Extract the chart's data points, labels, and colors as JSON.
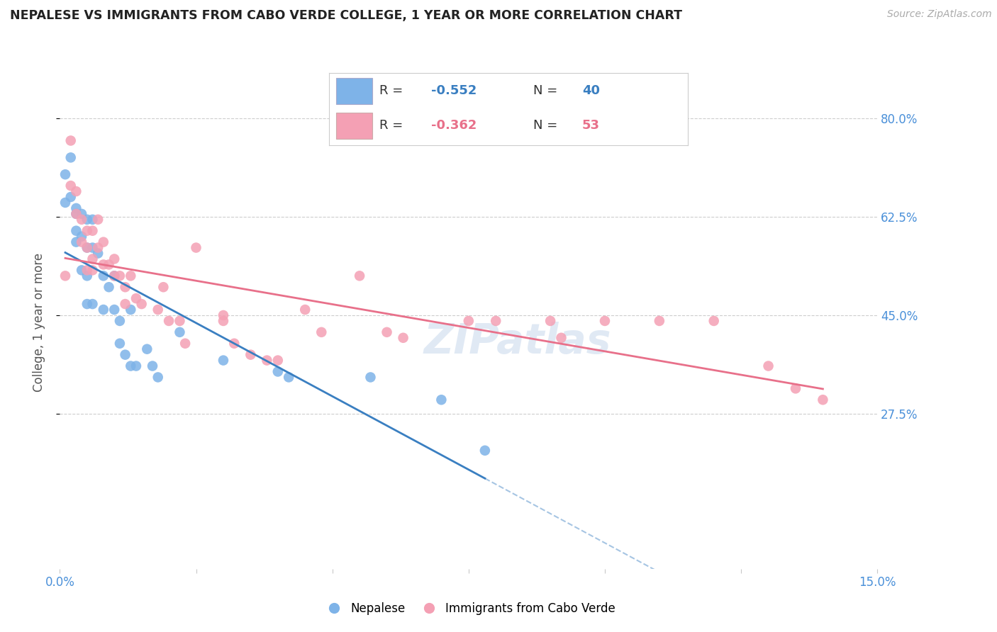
{
  "title": "NEPALESE VS IMMIGRANTS FROM CABO VERDE COLLEGE, 1 YEAR OR MORE CORRELATION CHART",
  "source": "Source: ZipAtlas.com",
  "ylabel": "College, 1 year or more",
  "xlim": [
    0.0,
    0.15
  ],
  "ylim": [
    0.0,
    0.875
  ],
  "nepalese_R": -0.552,
  "nepalese_N": 40,
  "caboverde_R": -0.362,
  "caboverde_N": 53,
  "nepalese_color": "#7EB3E8",
  "caboverde_color": "#F4A0B4",
  "nepalese_line_color": "#3A7FC1",
  "caboverde_line_color": "#E8708A",
  "yticks": [
    0.275,
    0.45,
    0.625,
    0.8
  ],
  "ytick_labels": [
    "27.5%",
    "45.0%",
    "62.5%",
    "80.0%"
  ],
  "xticks": [
    0.0,
    0.025,
    0.05,
    0.075,
    0.1,
    0.125,
    0.15
  ],
  "xtick_labels": [
    "0.0%",
    "",
    "",
    "",
    "",
    "",
    "15.0%"
  ],
  "nepalese_x": [
    0.001,
    0.001,
    0.002,
    0.002,
    0.003,
    0.003,
    0.003,
    0.003,
    0.004,
    0.004,
    0.004,
    0.005,
    0.005,
    0.005,
    0.005,
    0.006,
    0.006,
    0.006,
    0.007,
    0.008,
    0.008,
    0.009,
    0.01,
    0.01,
    0.011,
    0.011,
    0.012,
    0.013,
    0.013,
    0.014,
    0.016,
    0.017,
    0.018,
    0.022,
    0.03,
    0.04,
    0.042,
    0.057,
    0.07,
    0.078
  ],
  "nepalese_y": [
    0.7,
    0.65,
    0.73,
    0.66,
    0.64,
    0.63,
    0.6,
    0.58,
    0.63,
    0.59,
    0.53,
    0.62,
    0.57,
    0.52,
    0.47,
    0.62,
    0.57,
    0.47,
    0.56,
    0.52,
    0.46,
    0.5,
    0.52,
    0.46,
    0.44,
    0.4,
    0.38,
    0.46,
    0.36,
    0.36,
    0.39,
    0.36,
    0.34,
    0.42,
    0.37,
    0.35,
    0.34,
    0.34,
    0.3,
    0.21
  ],
  "caboverde_x": [
    0.001,
    0.002,
    0.002,
    0.003,
    0.003,
    0.004,
    0.004,
    0.005,
    0.005,
    0.005,
    0.006,
    0.006,
    0.006,
    0.007,
    0.007,
    0.008,
    0.008,
    0.009,
    0.01,
    0.01,
    0.011,
    0.012,
    0.012,
    0.013,
    0.014,
    0.015,
    0.018,
    0.019,
    0.02,
    0.022,
    0.023,
    0.025,
    0.03,
    0.03,
    0.032,
    0.035,
    0.038,
    0.04,
    0.045,
    0.048,
    0.055,
    0.06,
    0.063,
    0.075,
    0.08,
    0.09,
    0.092,
    0.1,
    0.11,
    0.12,
    0.13,
    0.135,
    0.14
  ],
  "caboverde_y": [
    0.52,
    0.76,
    0.68,
    0.67,
    0.63,
    0.62,
    0.58,
    0.6,
    0.57,
    0.53,
    0.6,
    0.55,
    0.53,
    0.62,
    0.57,
    0.58,
    0.54,
    0.54,
    0.55,
    0.52,
    0.52,
    0.5,
    0.47,
    0.52,
    0.48,
    0.47,
    0.46,
    0.5,
    0.44,
    0.44,
    0.4,
    0.57,
    0.45,
    0.44,
    0.4,
    0.38,
    0.37,
    0.37,
    0.46,
    0.42,
    0.52,
    0.42,
    0.41,
    0.44,
    0.44,
    0.44,
    0.41,
    0.44,
    0.44,
    0.44,
    0.36,
    0.32,
    0.3
  ]
}
